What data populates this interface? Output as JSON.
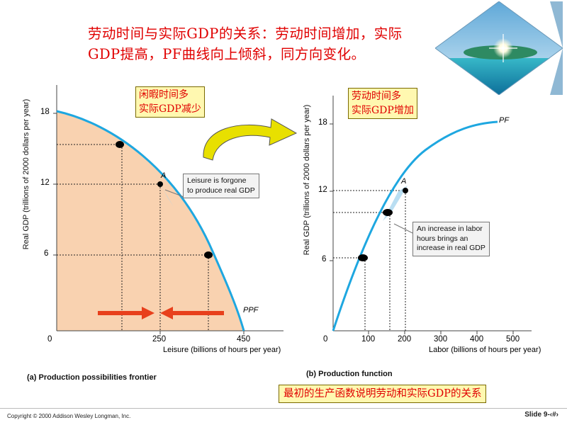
{
  "title": {
    "line1": "劳动时间与实际GDP的关系：劳动时间增加，实际",
    "line2": "GDP提高，PF曲线向上倾斜，同方向变化。"
  },
  "photo": {
    "icon": "beach-photo-icon"
  },
  "ppf_panel": {
    "ylabel": "Real GDP (trillions of 2000 dollars per year)",
    "xlabel": "Leisure (billions of hours per year)",
    "yticks": [
      "18",
      "12",
      "6"
    ],
    "xticks": [
      "250",
      "450"
    ],
    "origin": "0",
    "point_label": "A",
    "curve_label": "PPF",
    "caption": "(a) Production possibilities frontier",
    "callout": {
      "line1": "闲暇时间多",
      "line2": "实际GDP减少"
    },
    "note": {
      "line1": "Leisure is forgone",
      "line2": "to produce real GDP"
    }
  },
  "pf_panel": {
    "ylabel": "Real GDP (trillions of 2000 dollars per year)",
    "xlabel": "Labor (billions of hours per year)",
    "yticks": [
      "18",
      "12",
      "6"
    ],
    "xticks": [
      "100",
      "200",
      "300",
      "400",
      "500"
    ],
    "origin": "0",
    "point_label": "A",
    "curve_label": "PF",
    "caption": "(b) Production function",
    "callout": {
      "line1": "劳动时间多",
      "line2": "实际GDP增加"
    },
    "note": {
      "line1": "An increase in labor",
      "line2": "hours brings an",
      "line3": "increase in real GDP"
    }
  },
  "bottom_banner": "最初的生产函数说明劳动和实际GDP的关系",
  "footer": {
    "copyright": "Copyright © 2000 Addison Wesley Longman, Inc.",
    "slide": "Slide 9-‹#›"
  },
  "colors": {
    "curve": "#1ea7e0",
    "shading": "#f9d2b0",
    "title": "#e00000",
    "arrow": "#e8401c",
    "callout_fill": "#fff8b0",
    "point": "#000000",
    "big_arrow": "#e8e000"
  }
}
